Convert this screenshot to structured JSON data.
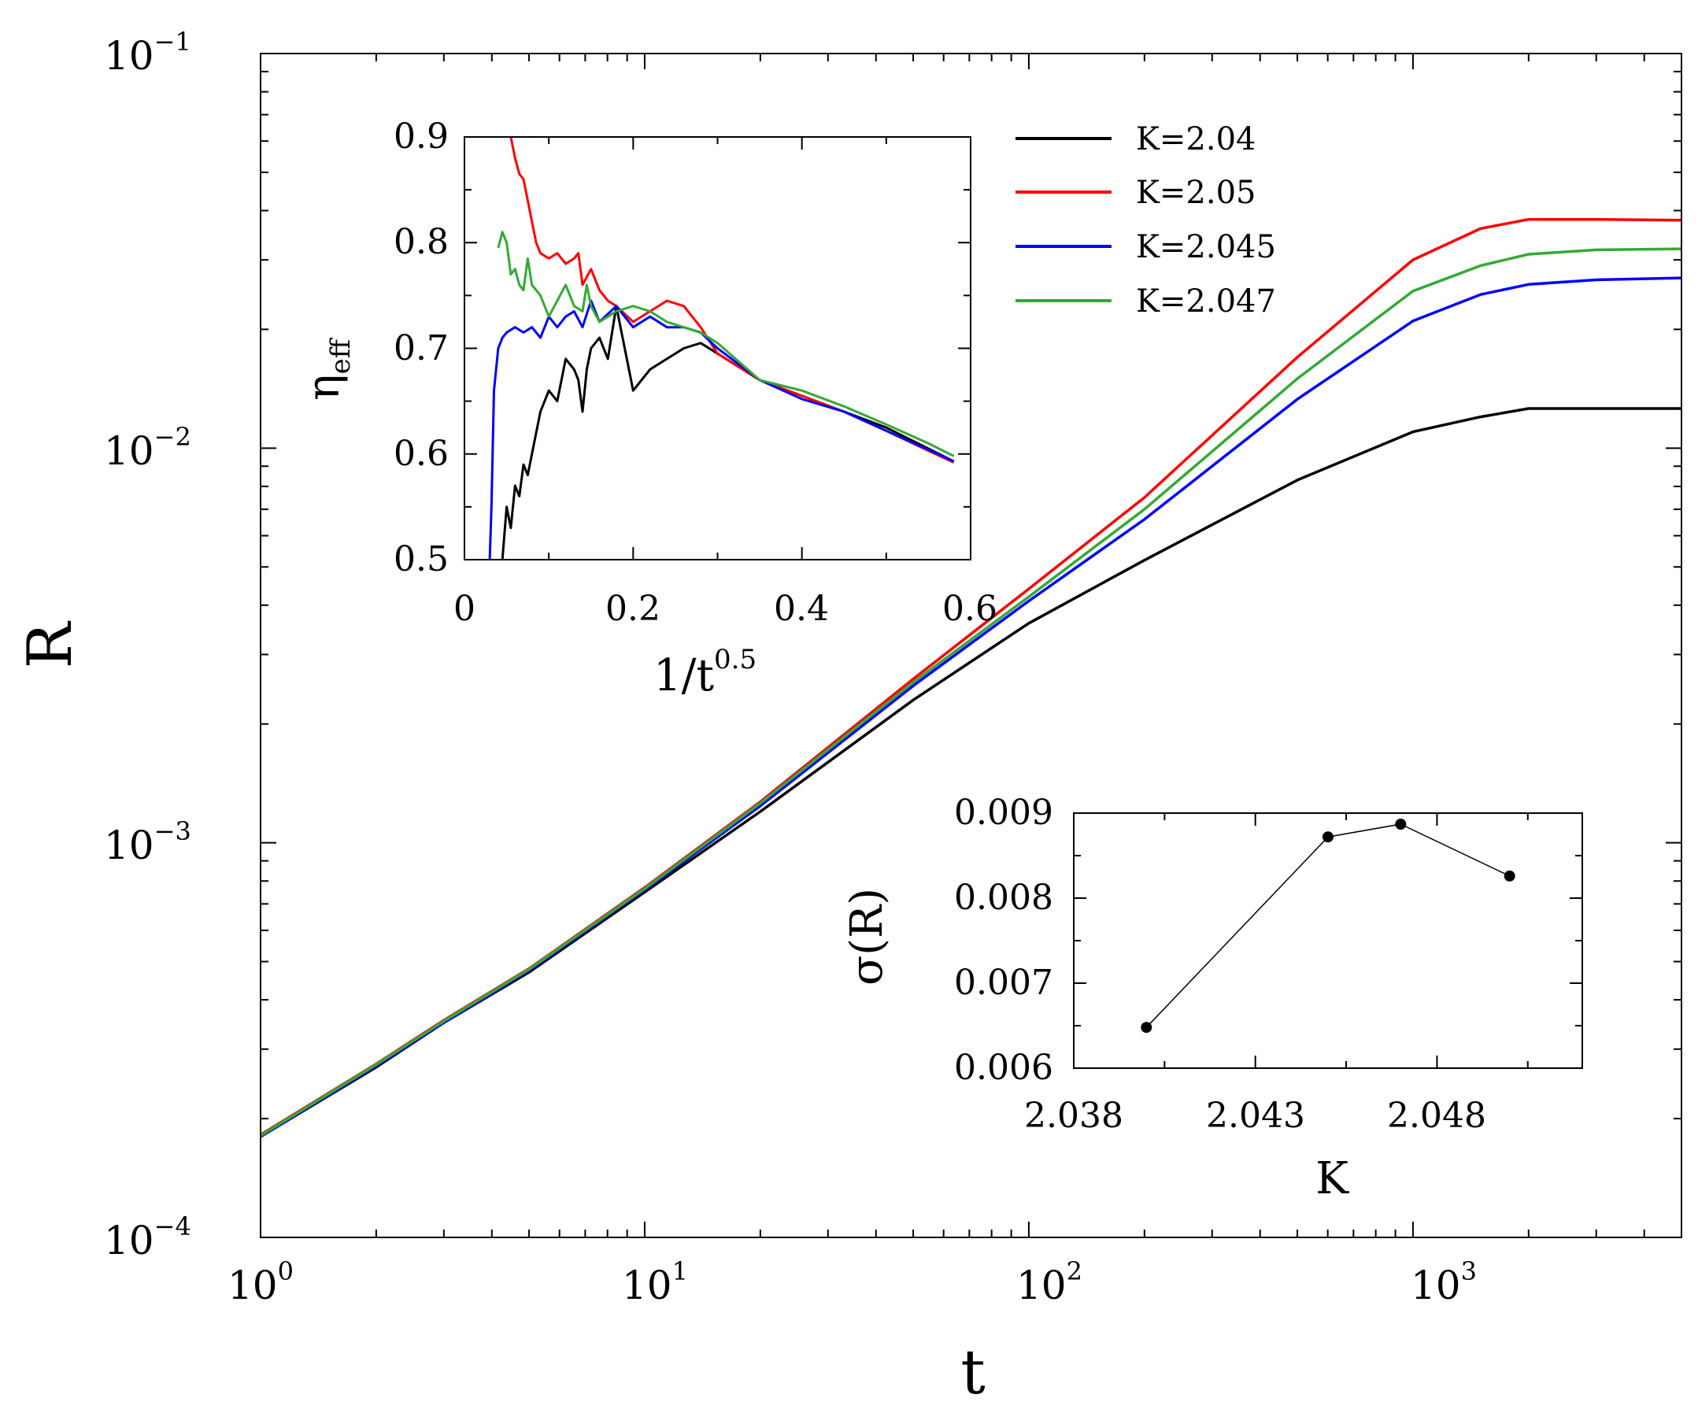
{
  "chart_data": [
    {
      "type": "line",
      "xlabel": "t",
      "ylabel": "R",
      "xscale": "log",
      "yscale": "log",
      "xlim": [
        1,
        5000
      ],
      "ylim": [
        0.0001,
        0.1
      ],
      "x_tick_labels": [
        {
          "base": "10",
          "exp": "0"
        },
        {
          "base": "10",
          "exp": "1"
        },
        {
          "base": "10",
          "exp": "2"
        },
        {
          "base": "10",
          "exp": "3"
        }
      ],
      "y_tick_labels": [
        {
          "base": "10",
          "exp": "−4"
        },
        {
          "base": "10",
          "exp": "−3"
        },
        {
          "base": "10",
          "exp": "−2"
        },
        {
          "base": "10",
          "exp": "−1"
        }
      ],
      "legend_position": "top-center",
      "series": [
        {
          "name": "K=2.04",
          "color": "#000000",
          "x": [
            1,
            2,
            3,
            5,
            10,
            20,
            50,
            100,
            200,
            500,
            1000,
            1500,
            2000,
            3000,
            5000
          ],
          "y": [
            0.00018,
            0.00027,
            0.00035,
            0.00047,
            0.00075,
            0.0012,
            0.0023,
            0.0036,
            0.0052,
            0.0083,
            0.011,
            0.012,
            0.0126,
            0.0126,
            0.0126
          ]
        },
        {
          "name": "K=2.05",
          "color": "#ff0000",
          "x": [
            1,
            2,
            3,
            5,
            10,
            20,
            50,
            100,
            200,
            500,
            1000,
            1500,
            2000,
            3000,
            5000
          ],
          "y": [
            0.000182,
            0.000275,
            0.000355,
            0.00048,
            0.00077,
            0.00127,
            0.0026,
            0.0044,
            0.0075,
            0.017,
            0.03,
            0.036,
            0.038,
            0.038,
            0.0378
          ]
        },
        {
          "name": "K=2.045",
          "color": "#0000ff",
          "x": [
            1,
            2,
            3,
            5,
            10,
            20,
            50,
            100,
            200,
            500,
            1000,
            1500,
            2000,
            3000,
            5000
          ],
          "y": [
            0.00018,
            0.000272,
            0.00035,
            0.000475,
            0.00076,
            0.00124,
            0.0025,
            0.0041,
            0.0066,
            0.0133,
            0.021,
            0.0245,
            0.026,
            0.0267,
            0.027
          ]
        },
        {
          "name": "K=2.047",
          "color": "#33aa33",
          "x": [
            1,
            2,
            3,
            5,
            10,
            20,
            50,
            100,
            200,
            500,
            1000,
            1500,
            2000,
            3000,
            5000
          ],
          "y": [
            0.000181,
            0.000274,
            0.000353,
            0.000478,
            0.000765,
            0.00126,
            0.00255,
            0.0042,
            0.007,
            0.015,
            0.025,
            0.029,
            0.031,
            0.0318,
            0.032
          ]
        }
      ]
    },
    {
      "type": "line",
      "xlabel": "1/t",
      "xlabel_exp": "0.5",
      "ylabel": "η",
      "ylabel_sub": "eff",
      "xlim": [
        0,
        0.6
      ],
      "ylim": [
        0.5,
        0.9
      ],
      "x_ticks": [
        "0",
        "0.2",
        "0.4",
        "0.6"
      ],
      "y_ticks": [
        "0.5",
        "0.6",
        "0.7",
        "0.8",
        "0.9"
      ],
      "series": [
        {
          "name": "K=2.04",
          "color": "#000000",
          "x": [
            0.045,
            0.05,
            0.055,
            0.06,
            0.065,
            0.07,
            0.075,
            0.08,
            0.09,
            0.1,
            0.11,
            0.12,
            0.13,
            0.135,
            0.14,
            0.145,
            0.15,
            0.16,
            0.17,
            0.18,
            0.19,
            0.2,
            0.21,
            0.22,
            0.24,
            0.26,
            0.28,
            0.3,
            0.35,
            0.4,
            0.45,
            0.5,
            0.55,
            0.58
          ],
          "y": [
            0.5,
            0.55,
            0.53,
            0.57,
            0.56,
            0.59,
            0.58,
            0.6,
            0.64,
            0.66,
            0.65,
            0.69,
            0.68,
            0.67,
            0.64,
            0.68,
            0.7,
            0.71,
            0.69,
            0.74,
            0.7,
            0.66,
            0.67,
            0.68,
            0.69,
            0.7,
            0.705,
            0.695,
            0.67,
            0.655,
            0.64,
            0.625,
            0.605,
            0.593
          ]
        },
        {
          "name": "K=2.05",
          "color": "#ff0000",
          "x": [
            0.055,
            0.06,
            0.065,
            0.07,
            0.075,
            0.08,
            0.085,
            0.09,
            0.1,
            0.11,
            0.12,
            0.13,
            0.135,
            0.14,
            0.15,
            0.16,
            0.17,
            0.18,
            0.2,
            0.22,
            0.24,
            0.26,
            0.28,
            0.3,
            0.35,
            0.4,
            0.45,
            0.5,
            0.55,
            0.58
          ],
          "y": [
            0.9,
            0.88,
            0.865,
            0.86,
            0.84,
            0.82,
            0.8,
            0.79,
            0.785,
            0.79,
            0.78,
            0.785,
            0.79,
            0.76,
            0.775,
            0.755,
            0.745,
            0.74,
            0.725,
            0.735,
            0.745,
            0.74,
            0.72,
            0.695,
            0.67,
            0.655,
            0.64,
            0.622,
            0.603,
            0.592
          ]
        },
        {
          "name": "K=2.045",
          "color": "#0000ff",
          "x": [
            0.03,
            0.032,
            0.035,
            0.04,
            0.045,
            0.05,
            0.06,
            0.07,
            0.08,
            0.09,
            0.1,
            0.11,
            0.12,
            0.13,
            0.14,
            0.15,
            0.16,
            0.18,
            0.2,
            0.22,
            0.24,
            0.26,
            0.28,
            0.3,
            0.35,
            0.4,
            0.45,
            0.5,
            0.55,
            0.58
          ],
          "y": [
            0.5,
            0.55,
            0.66,
            0.7,
            0.71,
            0.715,
            0.72,
            0.715,
            0.72,
            0.71,
            0.73,
            0.72,
            0.73,
            0.735,
            0.72,
            0.745,
            0.725,
            0.74,
            0.72,
            0.73,
            0.72,
            0.72,
            0.715,
            0.7,
            0.67,
            0.652,
            0.64,
            0.622,
            0.604,
            0.593
          ]
        },
        {
          "name": "K=2.047",
          "color": "#33aa33",
          "x": [
            0.04,
            0.045,
            0.05,
            0.055,
            0.06,
            0.065,
            0.07,
            0.075,
            0.08,
            0.09,
            0.1,
            0.11,
            0.12,
            0.13,
            0.14,
            0.145,
            0.15,
            0.16,
            0.17,
            0.18,
            0.2,
            0.22,
            0.24,
            0.26,
            0.28,
            0.3,
            0.35,
            0.4,
            0.45,
            0.5,
            0.55,
            0.58
          ],
          "y": [
            0.795,
            0.81,
            0.8,
            0.77,
            0.775,
            0.76,
            0.755,
            0.785,
            0.76,
            0.75,
            0.73,
            0.745,
            0.76,
            0.74,
            0.735,
            0.76,
            0.74,
            0.725,
            0.73,
            0.735,
            0.74,
            0.735,
            0.725,
            0.72,
            0.715,
            0.705,
            0.67,
            0.66,
            0.645,
            0.628,
            0.61,
            0.598
          ]
        }
      ]
    },
    {
      "type": "scatter",
      "xlabel": "K",
      "ylabel": "σ(R)",
      "xlim": [
        2.038,
        2.052
      ],
      "ylim": [
        0.006,
        0.009
      ],
      "x_ticks": [
        "2.038",
        "2.043",
        "2.048"
      ],
      "y_ticks": [
        "0.006",
        "0.007",
        "0.008",
        "0.009"
      ],
      "color": "#000000",
      "x": [
        2.04,
        2.045,
        2.047,
        2.05
      ],
      "y": [
        0.00648,
        0.00872,
        0.00887,
        0.00826
      ]
    }
  ]
}
